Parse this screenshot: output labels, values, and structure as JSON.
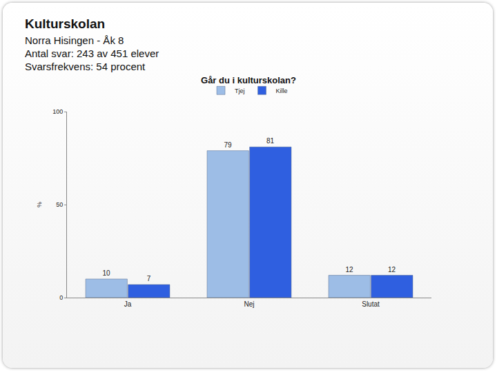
{
  "header": {
    "title": "Kulturskolan",
    "lines": [
      "Norra Hisingen - Åk 8",
      "Antal svar: 243 av 451 elever",
      "Svarsfrekvens: 54 procent"
    ]
  },
  "chart_data": {
    "type": "bar",
    "title": "Går du i kulturskolan?",
    "y_label": "%",
    "categories": [
      "Ja",
      "Nej",
      "Slutat"
    ],
    "series": [
      {
        "name": "Tjej",
        "color": "#9dbde6",
        "values": [
          10,
          79,
          12
        ]
      },
      {
        "name": "Kille",
        "color": "#2f5fe0",
        "values": [
          7,
          81,
          12
        ]
      }
    ],
    "ylim": [
      0,
      100
    ],
    "yticks": [
      0,
      50,
      100
    ],
    "grid": false,
    "legend": "top",
    "data_labels": true
  }
}
